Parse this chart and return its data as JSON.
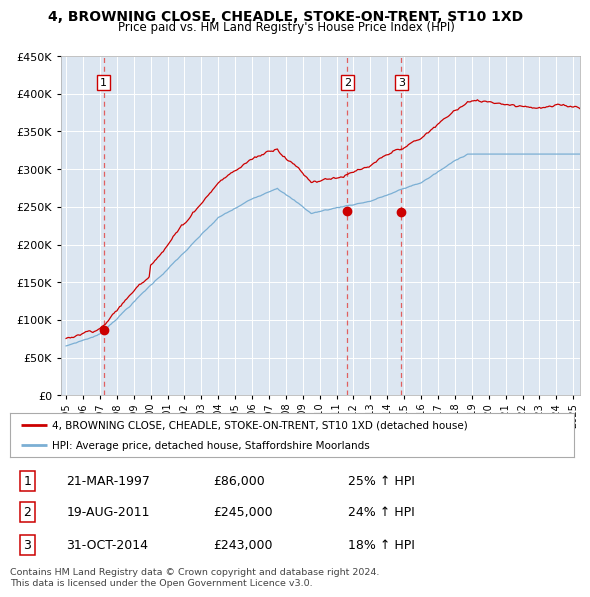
{
  "title": "4, BROWNING CLOSE, CHEADLE, STOKE-ON-TRENT, ST10 1XD",
  "subtitle": "Price paid vs. HM Land Registry's House Price Index (HPI)",
  "ylim": [
    0,
    450000
  ],
  "yticks": [
    0,
    50000,
    100000,
    150000,
    200000,
    250000,
    300000,
    350000,
    400000,
    450000
  ],
  "xlim_start": 1994.7,
  "xlim_end": 2025.4,
  "sale_dates": [
    1997.22,
    2011.63,
    2014.83
  ],
  "sale_prices": [
    86000,
    245000,
    243000
  ],
  "sale_labels": [
    "1",
    "2",
    "3"
  ],
  "hpi_color": "#7bafd4",
  "price_color": "#cc0000",
  "dashed_color": "#e06060",
  "plot_bg_color": "#dce6f1",
  "legend_label_price": "4, BROWNING CLOSE, CHEADLE, STOKE-ON-TRENT, ST10 1XD (detached house)",
  "legend_label_hpi": "HPI: Average price, detached house, Staffordshire Moorlands",
  "table_data": [
    [
      "1",
      "21-MAR-1997",
      "£86,000",
      "25% ↑ HPI"
    ],
    [
      "2",
      "19-AUG-2011",
      "£245,000",
      "24% ↑ HPI"
    ],
    [
      "3",
      "31-OCT-2014",
      "£243,000",
      "18% ↑ HPI"
    ]
  ],
  "footer": "Contains HM Land Registry data © Crown copyright and database right 2024.\nThis data is licensed under the Open Government Licence v3.0."
}
